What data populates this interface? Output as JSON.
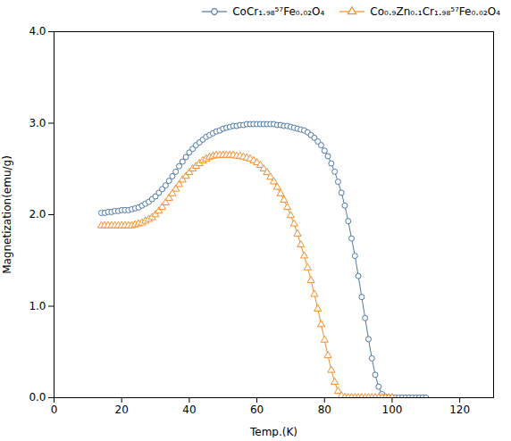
{
  "chart_data": {
    "type": "line",
    "xlabel": "Temp.(K)",
    "ylabel": "Magnetization(emu/g)",
    "xlim": [
      0,
      130
    ],
    "ylim": [
      0,
      4
    ],
    "xticks": [
      0,
      20,
      40,
      60,
      80,
      100,
      120
    ],
    "yticks": [
      0,
      1,
      2,
      3,
      4
    ],
    "legend": "upper right",
    "series": [
      {
        "name": "CoCr₁.₉₈⁵⁷Fe₀.₀₂O₄",
        "marker": "circle",
        "x": [
          14,
          15,
          16,
          17,
          18,
          19,
          20,
          21,
          22,
          23,
          24,
          25,
          26,
          27,
          28,
          29,
          30,
          31,
          32,
          33,
          34,
          35,
          36,
          37,
          38,
          39,
          40,
          41,
          42,
          43,
          44,
          45,
          46,
          47,
          48,
          49,
          50,
          51,
          52,
          53,
          54,
          55,
          56,
          57,
          58,
          59,
          60,
          61,
          62,
          63,
          64,
          65,
          66,
          67,
          68,
          69,
          70,
          71,
          72,
          73,
          74,
          75,
          76,
          77,
          78,
          79,
          80,
          81,
          82,
          83,
          84,
          85,
          86,
          87,
          88,
          89,
          90,
          91,
          92,
          93,
          94,
          95,
          96,
          97,
          98,
          99,
          100,
          101,
          102,
          103,
          104,
          105,
          106,
          107,
          108,
          109,
          110
        ],
        "values": [
          2.02,
          2.02,
          2.03,
          2.03,
          2.04,
          2.04,
          2.05,
          2.05,
          2.05,
          2.06,
          2.07,
          2.08,
          2.1,
          2.12,
          2.14,
          2.17,
          2.2,
          2.24,
          2.28,
          2.32,
          2.37,
          2.42,
          2.47,
          2.53,
          2.58,
          2.63,
          2.68,
          2.72,
          2.76,
          2.79,
          2.82,
          2.85,
          2.87,
          2.89,
          2.91,
          2.92,
          2.94,
          2.95,
          2.96,
          2.97,
          2.97,
          2.98,
          2.98,
          2.99,
          2.99,
          2.99,
          2.99,
          2.99,
          2.99,
          2.99,
          2.99,
          2.99,
          2.98,
          2.98,
          2.97,
          2.97,
          2.96,
          2.95,
          2.94,
          2.93,
          2.92,
          2.9,
          2.87,
          2.84,
          2.8,
          2.76,
          2.7,
          2.64,
          2.56,
          2.47,
          2.36,
          2.24,
          2.1,
          1.93,
          1.74,
          1.55,
          1.33,
          1.1,
          0.87,
          0.64,
          0.43,
          0.25,
          0.12,
          0.04,
          0.01,
          0.005,
          0.002,
          0.001,
          0.001,
          0.001,
          0.001,
          0.001,
          0.001,
          0.001,
          0.001,
          0.001,
          0.001
        ]
      },
      {
        "name": "Co₀.₉Zn₀.₁Cr₁.₉₈⁵⁷Fe₀.₀₂O₄",
        "marker": "triangle",
        "x": [
          14,
          15,
          16,
          17,
          18,
          19,
          20,
          21,
          22,
          23,
          24,
          25,
          26,
          27,
          28,
          29,
          30,
          31,
          32,
          33,
          34,
          35,
          36,
          37,
          38,
          39,
          40,
          41,
          42,
          43,
          44,
          45,
          46,
          47,
          48,
          49,
          50,
          51,
          52,
          53,
          54,
          55,
          56,
          57,
          58,
          59,
          60,
          61,
          62,
          63,
          64,
          65,
          66,
          67,
          68,
          69,
          70,
          71,
          72,
          73,
          74,
          75,
          76,
          77,
          78,
          79,
          80,
          81,
          82,
          83,
          84,
          85,
          86,
          87,
          88,
          89,
          90,
          91,
          92,
          93,
          94,
          95,
          96,
          97,
          98,
          99,
          100
        ],
        "values": [
          1.88,
          1.88,
          1.88,
          1.88,
          1.88,
          1.88,
          1.88,
          1.88,
          1.88,
          1.88,
          1.89,
          1.9,
          1.91,
          1.93,
          1.95,
          1.97,
          2.0,
          2.04,
          2.08,
          2.13,
          2.18,
          2.23,
          2.28,
          2.33,
          2.38,
          2.42,
          2.46,
          2.5,
          2.53,
          2.56,
          2.59,
          2.61,
          2.63,
          2.64,
          2.65,
          2.65,
          2.65,
          2.65,
          2.65,
          2.65,
          2.64,
          2.64,
          2.63,
          2.62,
          2.61,
          2.59,
          2.57,
          2.54,
          2.5,
          2.46,
          2.41,
          2.36,
          2.3,
          2.23,
          2.16,
          2.08,
          1.99,
          1.9,
          1.79,
          1.67,
          1.55,
          1.42,
          1.28,
          1.13,
          0.97,
          0.8,
          0.63,
          0.46,
          0.3,
          0.17,
          0.07,
          0.02,
          0.005,
          0.001,
          0.001,
          0.001,
          0.001,
          0.001,
          0.001,
          0.001,
          0.001,
          0.001,
          0.001,
          0.001,
          0.001,
          0.001,
          0.001
        ]
      }
    ]
  }
}
